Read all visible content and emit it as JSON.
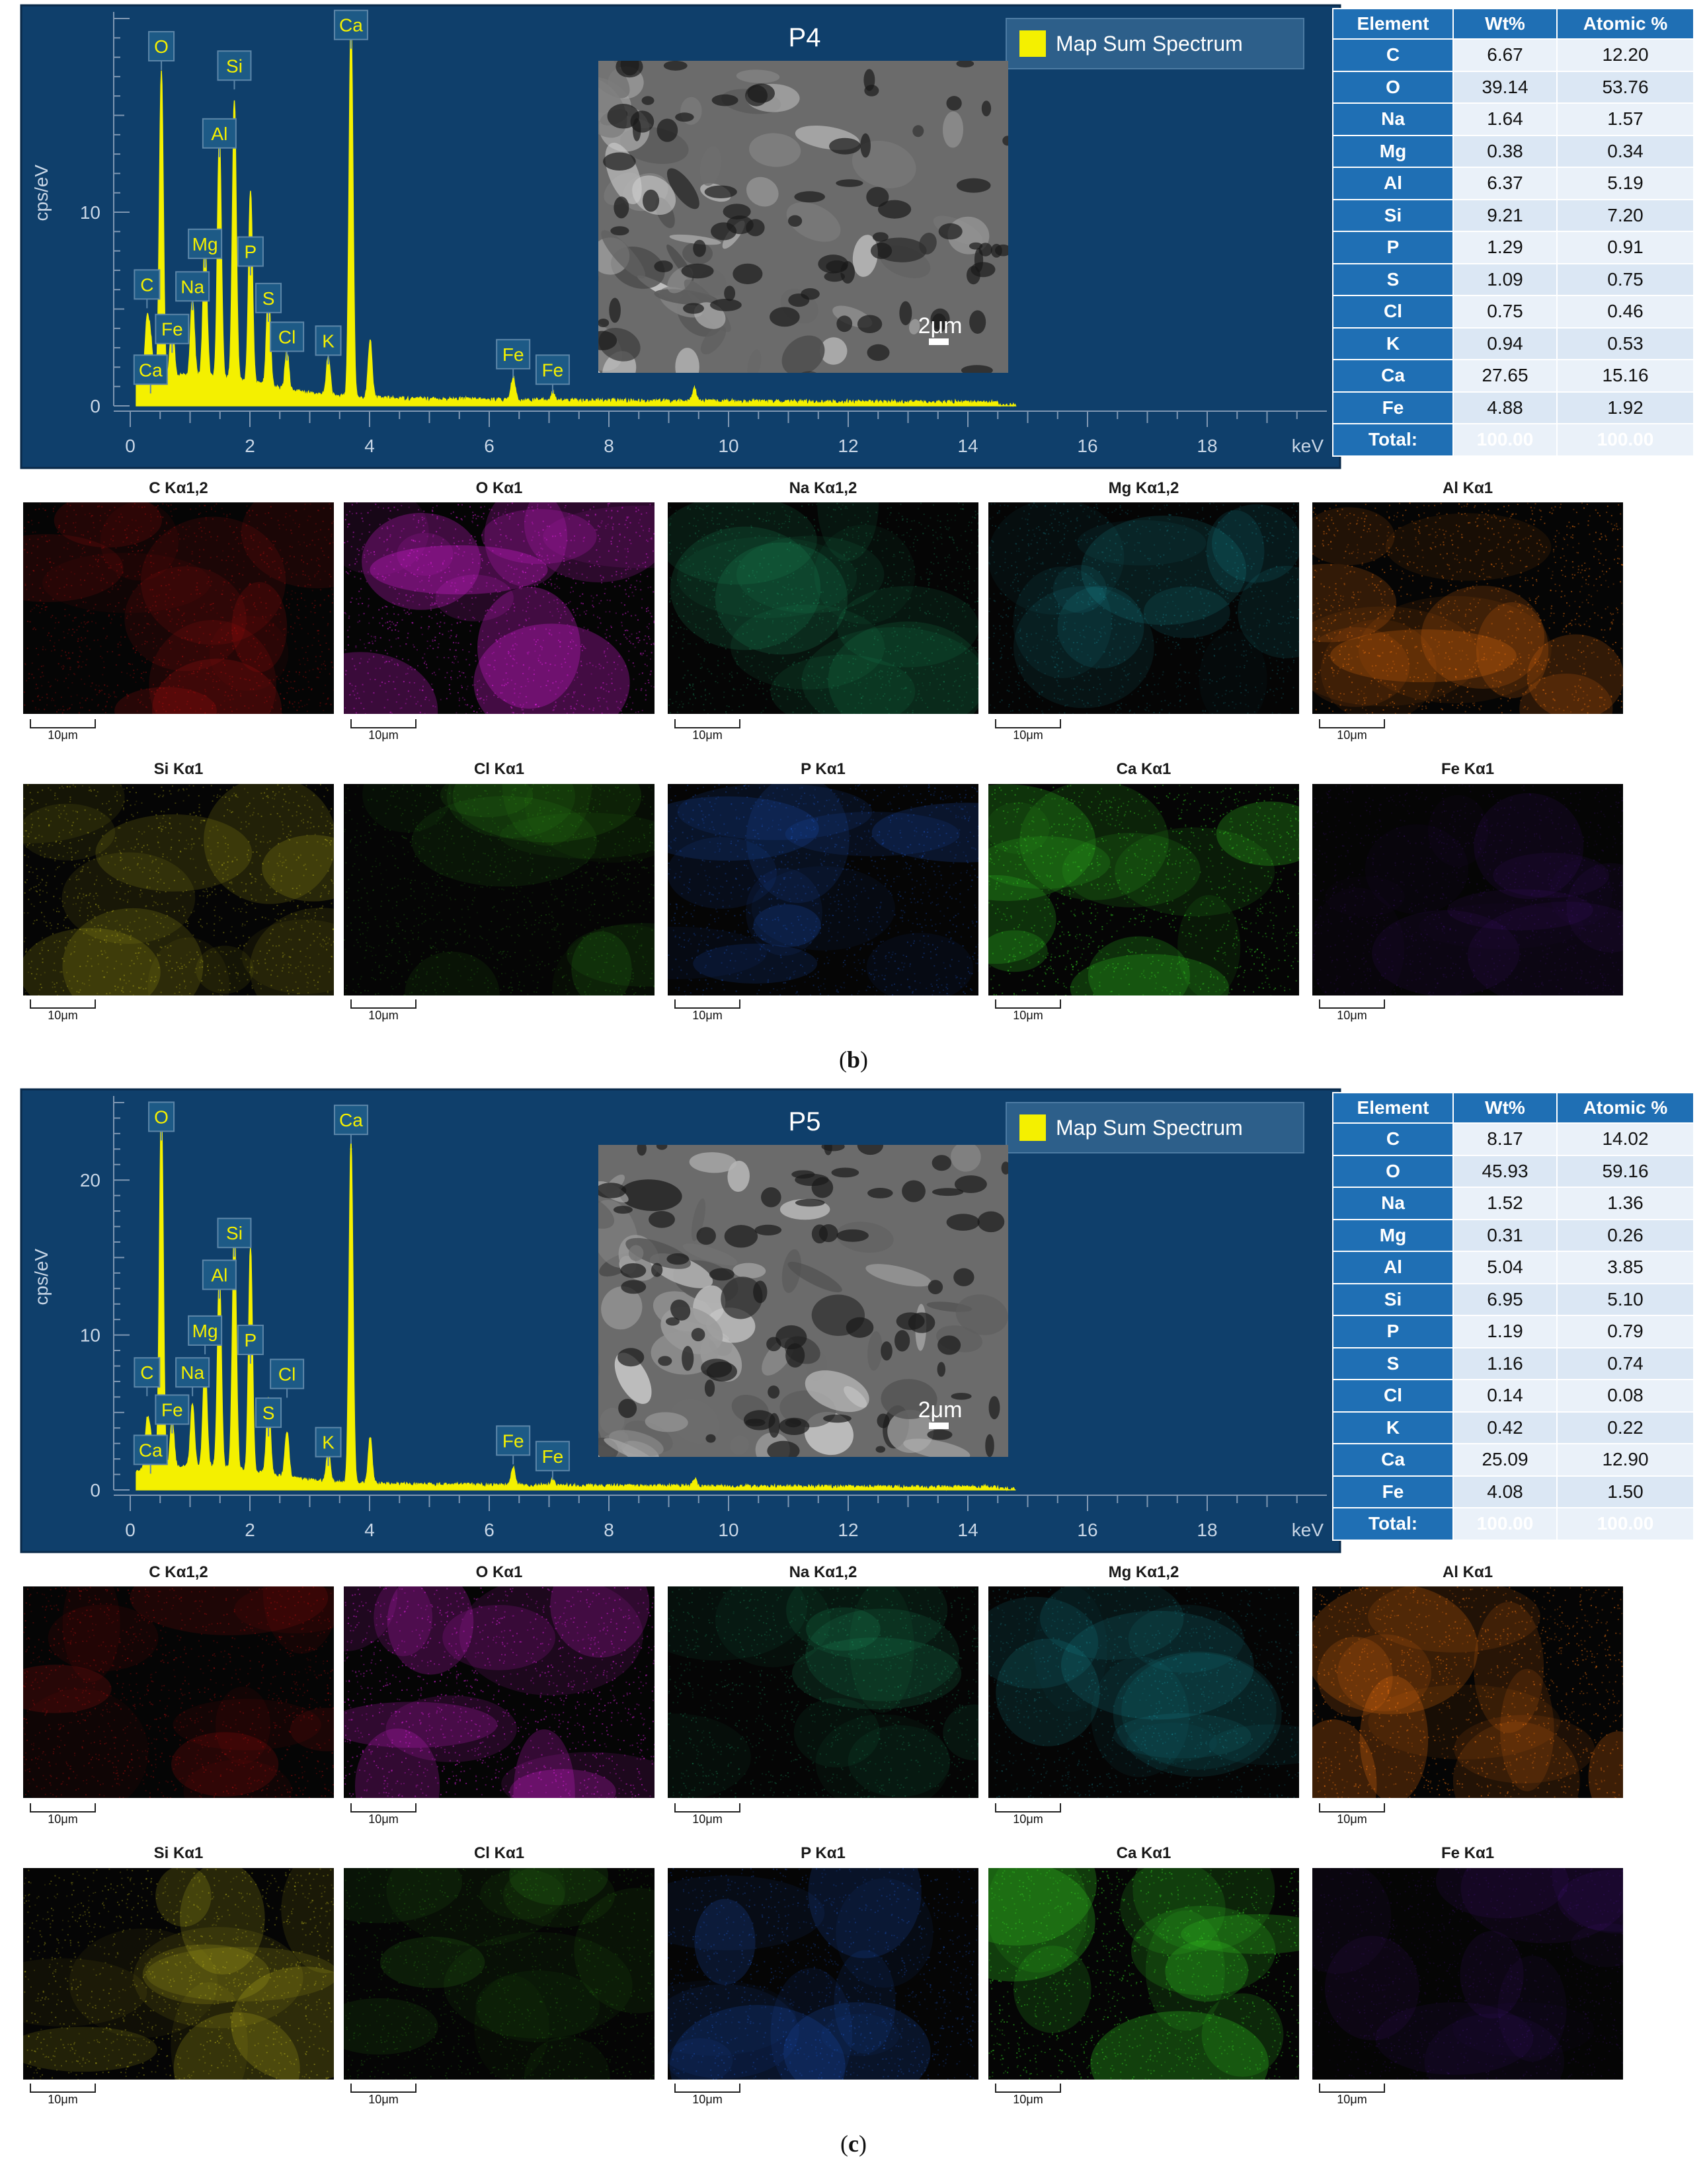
{
  "colors": {
    "spectrum_bg": "#0f3f6b",
    "spectrum_fill": "#f4f000",
    "axis_text": "#c8d6e6",
    "table_header": "#1f6fb4",
    "map_colors": {
      "C": "#e01010",
      "O": "#e020e0",
      "Na": "#20b070",
      "Mg": "#20c8d8",
      "Al": "#ff7a10",
      "Si": "#e8e020",
      "Cl": "#40d020",
      "P": "#2060e0",
      "Ca": "#30c020",
      "Fe": "#7a20e8"
    }
  },
  "panels": [
    {
      "id": "b",
      "label_open": "(",
      "label_letter": "b",
      "label_close": ")",
      "sample": "P4",
      "legend": "Map Sum Spectrum",
      "sem_scale": "2μm",
      "chart_data": {
        "type": "area",
        "title": "P4",
        "xlabel": "keV",
        "ylabel": "cps/eV",
        "xlim": [
          0,
          20
        ],
        "ylim": [
          0,
          20
        ],
        "x_ticks": [
          "0",
          "2",
          "4",
          "6",
          "8",
          "10",
          "12",
          "14",
          "16",
          "18"
        ],
        "y_ticks": [
          "0",
          "10"
        ],
        "legend": "Map Sum Spectrum",
        "peaks": [
          {
            "x": 0.28,
            "y": 3.0
          },
          {
            "x": 0.34,
            "y": 2.0
          },
          {
            "x": 0.52,
            "y": 16.0
          },
          {
            "x": 0.7,
            "y": 3.0
          },
          {
            "x": 1.04,
            "y": 4.0
          },
          {
            "x": 1.25,
            "y": 7.0
          },
          {
            "x": 1.49,
            "y": 12.5
          },
          {
            "x": 1.74,
            "y": 14.5
          },
          {
            "x": 2.01,
            "y": 10.0
          },
          {
            "x": 2.31,
            "y": 5.0
          },
          {
            "x": 2.62,
            "y": 2.0
          },
          {
            "x": 3.31,
            "y": 2.0
          },
          {
            "x": 3.69,
            "y": 19.5
          },
          {
            "x": 4.01,
            "y": 3.0
          },
          {
            "x": 6.4,
            "y": 1.2
          },
          {
            "x": 7.06,
            "y": 0.4
          },
          {
            "x": 9.43,
            "y": 0.7
          }
        ],
        "peak_labels": [
          {
            "text": "O",
            "x": 0.52,
            "y": 18.5
          },
          {
            "text": "Si",
            "x": 1.74,
            "y": 17.5
          },
          {
            "text": "Al",
            "x": 1.49,
            "y": 14.0
          },
          {
            "text": "Mg",
            "x": 1.25,
            "y": 8.3
          },
          {
            "text": "P",
            "x": 2.01,
            "y": 7.9
          },
          {
            "text": "C",
            "x": 0.28,
            "y": 6.2
          },
          {
            "text": "Na",
            "x": 1.04,
            "y": 6.1
          },
          {
            "text": "S",
            "x": 2.31,
            "y": 5.5
          },
          {
            "text": "Fe",
            "x": 0.7,
            "y": 3.9
          },
          {
            "text": "Cl",
            "x": 2.62,
            "y": 3.5
          },
          {
            "text": "K",
            "x": 3.31,
            "y": 3.3
          },
          {
            "text": "Ca",
            "x": 0.34,
            "y": 1.8
          },
          {
            "text": "Ca",
            "x": 3.69,
            "y": 19.6
          },
          {
            "text": "Fe",
            "x": 6.4,
            "y": 2.6
          },
          {
            "text": "Fe",
            "x": 7.06,
            "y": 1.8
          }
        ]
      },
      "table": {
        "headers": [
          "Element",
          "Wt%",
          "Atomic %"
        ],
        "rows": [
          [
            "C",
            "6.67",
            "12.20"
          ],
          [
            "O",
            "39.14",
            "53.76"
          ],
          [
            "Na",
            "1.64",
            "1.57"
          ],
          [
            "Mg",
            "0.38",
            "0.34"
          ],
          [
            "Al",
            "6.37",
            "5.19"
          ],
          [
            "Si",
            "9.21",
            "7.20"
          ],
          [
            "P",
            "1.29",
            "0.91"
          ],
          [
            "S",
            "1.09",
            "0.75"
          ],
          [
            "Cl",
            "0.75",
            "0.46"
          ],
          [
            "K",
            "0.94",
            "0.53"
          ],
          [
            "Ca",
            "27.65",
            "15.16"
          ],
          [
            "Fe",
            "4.88",
            "1.92"
          ],
          [
            "Total:",
            "100.00",
            "100.00"
          ]
        ]
      },
      "maps": [
        {
          "title": "C Kα1,2",
          "el": "C",
          "scale": "10μm"
        },
        {
          "title": "O Kα1",
          "el": "O",
          "scale": "10μm"
        },
        {
          "title": "Na Kα1,2",
          "el": "Na",
          "scale": "10μm"
        },
        {
          "title": "Mg Kα1,2",
          "el": "Mg",
          "scale": "10μm"
        },
        {
          "title": "Al Kα1",
          "el": "Al",
          "scale": "10μm"
        },
        {
          "title": "Si Kα1",
          "el": "Si",
          "scale": "10μm"
        },
        {
          "title": "Cl Kα1",
          "el": "Cl",
          "scale": "10μm"
        },
        {
          "title": "P Kα1",
          "el": "P",
          "scale": "10μm"
        },
        {
          "title": "Ca Kα1",
          "el": "Ca",
          "scale": "10μm"
        },
        {
          "title": "Fe Kα1",
          "el": "Fe",
          "scale": "10μm"
        }
      ]
    },
    {
      "id": "c",
      "label_open": "(",
      "label_letter": "c",
      "label_close": ")",
      "sample": "P5",
      "legend": "Map Sum Spectrum",
      "sem_scale": "2μm",
      "chart_data": {
        "type": "area",
        "title": "P5",
        "xlabel": "keV",
        "ylabel": "cps/eV",
        "xlim": [
          0,
          20
        ],
        "ylim": [
          0,
          25
        ],
        "x_ticks": [
          "0",
          "2",
          "4",
          "6",
          "8",
          "10",
          "12",
          "14",
          "16",
          "18"
        ],
        "y_ticks": [
          "0",
          "10",
          "20"
        ],
        "legend": "Map Sum Spectrum",
        "peaks": [
          {
            "x": 0.28,
            "y": 3.0
          },
          {
            "x": 0.34,
            "y": 2.0
          },
          {
            "x": 0.52,
            "y": 23.5
          },
          {
            "x": 0.7,
            "y": 3.0
          },
          {
            "x": 1.04,
            "y": 4.0
          },
          {
            "x": 1.25,
            "y": 7.0
          },
          {
            "x": 1.49,
            "y": 12.5
          },
          {
            "x": 1.74,
            "y": 16.0
          },
          {
            "x": 2.01,
            "y": 14.5
          },
          {
            "x": 2.31,
            "y": 5.0
          },
          {
            "x": 2.62,
            "y": 3.0
          },
          {
            "x": 3.31,
            "y": 2.0
          },
          {
            "x": 3.69,
            "y": 22.0
          },
          {
            "x": 4.01,
            "y": 3.0
          },
          {
            "x": 6.4,
            "y": 1.2
          },
          {
            "x": 7.06,
            "y": 0.4
          },
          {
            "x": 9.43,
            "y": 0.5
          }
        ],
        "peak_labels": [
          {
            "text": "O",
            "x": 0.52,
            "y": 24.0
          },
          {
            "text": "Ca",
            "x": 3.69,
            "y": 23.8
          },
          {
            "text": "Si",
            "x": 1.74,
            "y": 16.5
          },
          {
            "text": "Al",
            "x": 1.49,
            "y": 13.8
          },
          {
            "text": "Mg",
            "x": 1.25,
            "y": 10.2
          },
          {
            "text": "P",
            "x": 2.01,
            "y": 9.6
          },
          {
            "text": "C",
            "x": 0.28,
            "y": 7.5
          },
          {
            "text": "Na",
            "x": 1.04,
            "y": 7.5
          },
          {
            "text": "Cl",
            "x": 2.62,
            "y": 7.4
          },
          {
            "text": "Fe",
            "x": 0.7,
            "y": 5.1
          },
          {
            "text": "S",
            "x": 2.31,
            "y": 4.9
          },
          {
            "text": "K",
            "x": 3.31,
            "y": 3.0
          },
          {
            "text": "Ca",
            "x": 0.34,
            "y": 2.5
          },
          {
            "text": "Fe",
            "x": 6.4,
            "y": 3.1
          },
          {
            "text": "Fe",
            "x": 7.06,
            "y": 2.1
          }
        ]
      },
      "table": {
        "headers": [
          "Element",
          "Wt%",
          "Atomic %"
        ],
        "rows": [
          [
            "C",
            "8.17",
            "14.02"
          ],
          [
            "O",
            "45.93",
            "59.16"
          ],
          [
            "Na",
            "1.52",
            "1.36"
          ],
          [
            "Mg",
            "0.31",
            "0.26"
          ],
          [
            "Al",
            "5.04",
            "3.85"
          ],
          [
            "Si",
            "6.95",
            "5.10"
          ],
          [
            "P",
            "1.19",
            "0.79"
          ],
          [
            "S",
            "1.16",
            "0.74"
          ],
          [
            "Cl",
            "0.14",
            "0.08"
          ],
          [
            "K",
            "0.42",
            "0.22"
          ],
          [
            "Ca",
            "25.09",
            "12.90"
          ],
          [
            "Fe",
            "4.08",
            "1.50"
          ],
          [
            "Total:",
            "100.00",
            "100.00"
          ]
        ]
      },
      "maps": [
        {
          "title": "C Kα1,2",
          "el": "C",
          "scale": "10μm"
        },
        {
          "title": "O Kα1",
          "el": "O",
          "scale": "10μm"
        },
        {
          "title": "Na Kα1,2",
          "el": "Na",
          "scale": "10μm"
        },
        {
          "title": "Mg Kα1,2",
          "el": "Mg",
          "scale": "10μm"
        },
        {
          "title": "Al Kα1",
          "el": "Al",
          "scale": "10μm"
        },
        {
          "title": "Si Kα1",
          "el": "Si",
          "scale": "10μm"
        },
        {
          "title": "Cl Kα1",
          "el": "Cl",
          "scale": "10μm"
        },
        {
          "title": "P Kα1",
          "el": "P",
          "scale": "10μm"
        },
        {
          "title": "Ca Kα1",
          "el": "Ca",
          "scale": "10μm"
        },
        {
          "title": "Fe Kα1",
          "el": "Fe",
          "scale": "10μm"
        }
      ]
    }
  ]
}
